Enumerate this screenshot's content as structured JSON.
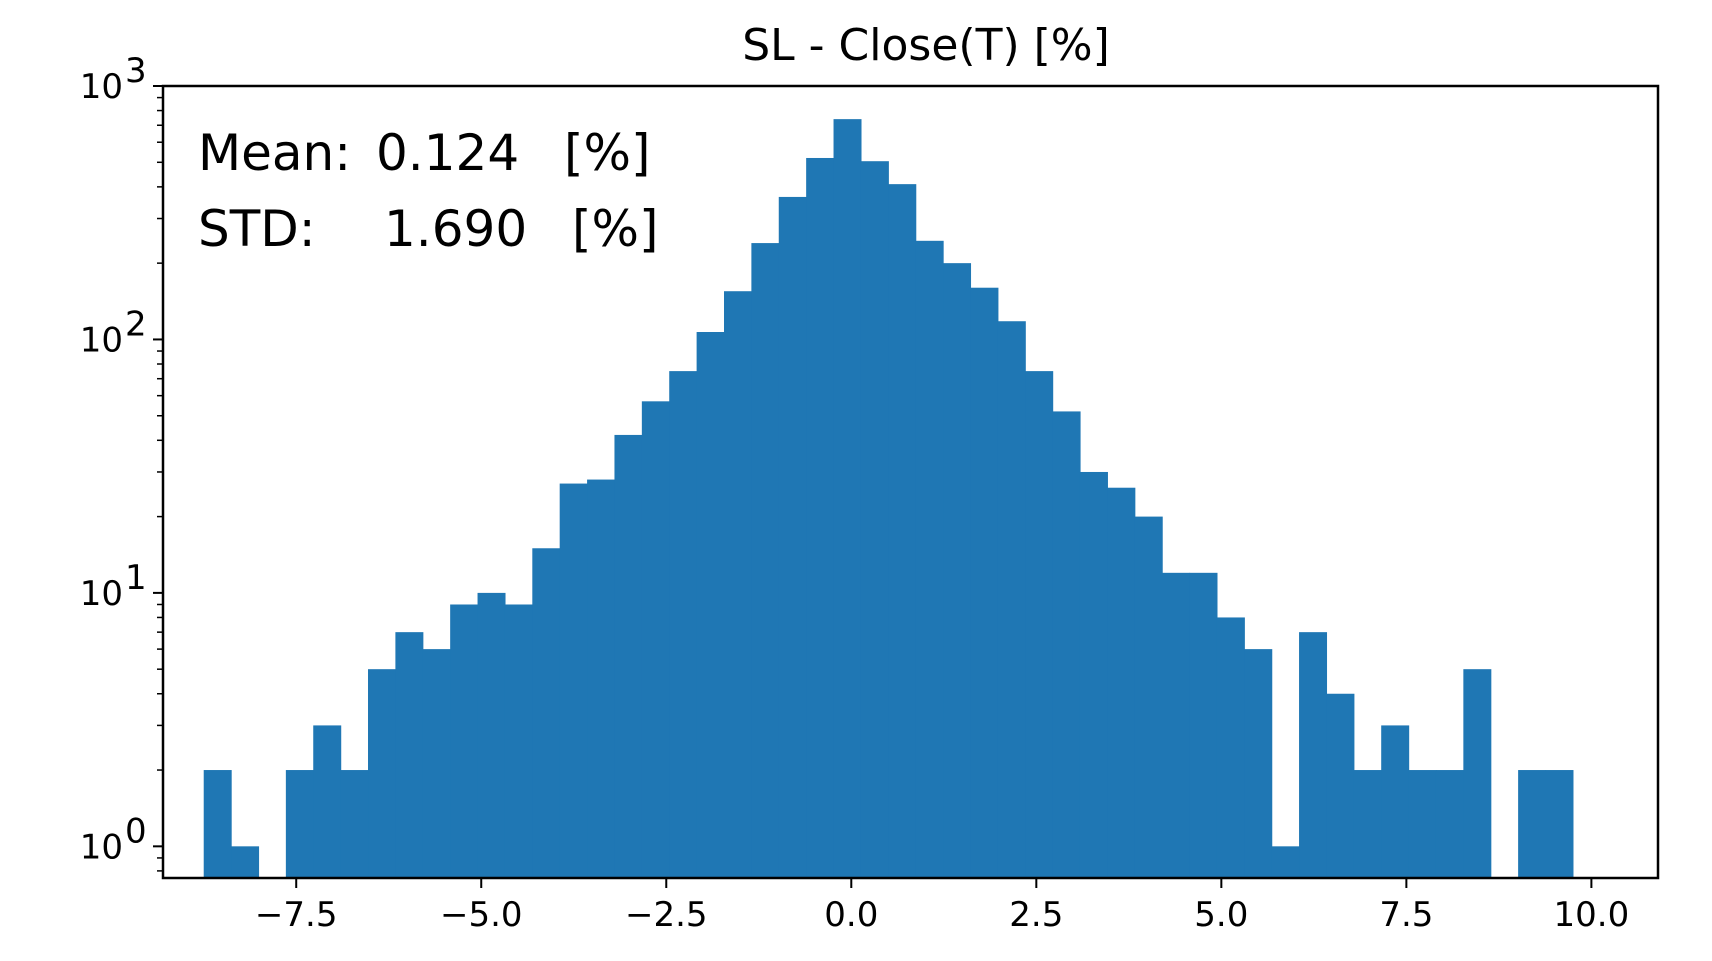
{
  "chart_data": {
    "type": "bar",
    "title": "SL - Close(T) [%]",
    "xlabel": "",
    "ylabel": "",
    "yscale": "log",
    "xlim": [
      -9.3,
      10.9
    ],
    "ylim": [
      0.75,
      1000
    ],
    "grid": false,
    "x_ticks": [
      -7.5,
      -5.0,
      -2.5,
      0.0,
      2.5,
      5.0,
      7.5,
      10.0
    ],
    "x_tick_labels": [
      "−7.5",
      "−5.0",
      "−2.5",
      "0.0",
      "2.5",
      "5.0",
      "7.5",
      "10.0"
    ],
    "y_ticks": [
      {
        "value": 1,
        "base": "10",
        "exp": "0"
      },
      {
        "value": 10,
        "base": "10",
        "exp": "1"
      },
      {
        "value": 100,
        "base": "10",
        "exp": "2"
      },
      {
        "value": 1000,
        "base": "10",
        "exp": "3"
      }
    ],
    "bin_start": -8.75,
    "bin_width": 0.37,
    "counts": [
      2,
      1,
      0,
      2,
      3,
      2,
      5,
      7,
      6,
      9,
      10,
      9,
      15,
      27,
      28,
      42,
      57,
      75,
      107,
      155,
      240,
      365,
      520,
      740,
      505,
      410,
      245,
      200,
      160,
      118,
      75,
      52,
      30,
      26,
      20,
      12,
      12,
      8,
      6,
      1,
      7,
      4,
      2,
      3,
      2,
      2,
      5,
      0,
      2,
      2
    ],
    "color": "#1f77b4",
    "annotations": [
      {
        "label": "Mean:",
        "value": "0.124",
        "unit": "[%]"
      },
      {
        "label": "STD:",
        "value": "1.690",
        "unit": "[%]"
      }
    ]
  }
}
